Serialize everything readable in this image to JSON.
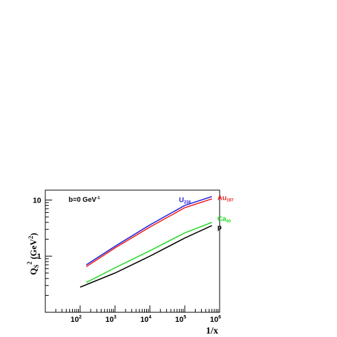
{
  "chart_data": {
    "type": "line",
    "title": "",
    "xlabel": "1/x",
    "ylabel": {
      "main": "Q",
      "sub": "S",
      "sup": "2",
      "unit": " (GeV",
      "unit_sup": "2",
      "close": ")"
    },
    "x_scale": "log",
    "y_scale": "log",
    "xlim": [
      10,
      1000000
    ],
    "ylim": [
      0.1,
      15
    ],
    "x_ticks": [
      {
        "value": 100,
        "base": "10",
        "exp": "2"
      },
      {
        "value": 1000,
        "base": "10",
        "exp": "3"
      },
      {
        "value": 10000,
        "base": "10",
        "exp": "4"
      },
      {
        "value": 100000,
        "base": "10",
        "exp": "5"
      },
      {
        "value": 1000000,
        "base": "10",
        "exp": "6"
      }
    ],
    "y_ticks": [
      {
        "value": 1,
        "label": "1"
      },
      {
        "value": 10,
        "label": "10"
      }
    ],
    "annotation": {
      "text": "b=0 GeV",
      "sup": "-1"
    },
    "series": [
      {
        "name": "U",
        "sub": "238",
        "color": "#2222dd",
        "x": [
          150,
          1000,
          10000,
          100000,
          600000
        ],
        "y": [
          0.7,
          1.5,
          3.6,
          8.0,
          11.5
        ]
      },
      {
        "name": "Au",
        "sub": "197",
        "color": "#ee2222",
        "x": [
          150,
          1000,
          10000,
          100000,
          600000
        ],
        "y": [
          0.65,
          1.4,
          3.3,
          7.3,
          10.5
        ]
      },
      {
        "name": "Ca",
        "sub": "40",
        "color": "#22dd22",
        "x": [
          150,
          1000,
          10000,
          100000,
          600000
        ],
        "y": [
          0.34,
          0.62,
          1.25,
          2.6,
          4.0
        ]
      },
      {
        "name": "p",
        "sub": "",
        "color": "#000000",
        "x": [
          100,
          1000,
          10000,
          100000,
          600000
        ],
        "y": [
          0.28,
          0.5,
          1.0,
          2.1,
          3.5
        ]
      }
    ]
  }
}
